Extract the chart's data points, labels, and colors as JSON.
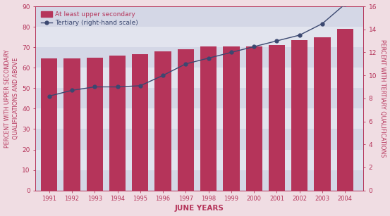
{
  "years": [
    1991,
    1992,
    1993,
    1994,
    1995,
    1996,
    1997,
    1998,
    1999,
    2000,
    2001,
    2002,
    2003,
    2004
  ],
  "bar_values": [
    64.5,
    64.5,
    65.0,
    66.0,
    66.5,
    68.0,
    69.0,
    70.5,
    70.5,
    70.5,
    71.0,
    73.5,
    75.0,
    79.0
  ],
  "line_values": [
    8.2,
    8.7,
    9.0,
    9.0,
    9.1,
    10.0,
    11.0,
    11.5,
    12.0,
    12.5,
    13.0,
    13.5,
    14.5,
    16.2
  ],
  "bar_color": "#b5345a",
  "line_color": "#3b4870",
  "background_outer": "#f0dde3",
  "background_plot": "#e2e4ee",
  "background_bands": [
    "#d4d7e6",
    "#e2e4ee"
  ],
  "left_ylabel": "PERCENT WITH UPPER SECONDARY\nQUALIFICATIONS AND ABOVE",
  "right_ylabel": "PERCENT WITH TERTIARY QUALIFICATIONS",
  "xlabel": "JUNE YEARS",
  "left_ylim": [
    0,
    90
  ],
  "right_ylim": [
    0,
    16
  ],
  "left_yticks": [
    0,
    10,
    20,
    30,
    40,
    50,
    60,
    70,
    80,
    90
  ],
  "right_yticks": [
    0,
    2,
    4,
    6,
    8,
    10,
    12,
    14,
    16
  ],
  "legend_bar_label": "At least upper secondary",
  "legend_line_label": "Tertiary (right-hand scale)",
  "tick_color": "#b5345a",
  "right_tick_color": "#8a9ab8"
}
